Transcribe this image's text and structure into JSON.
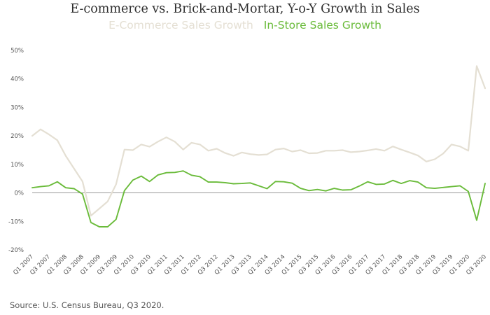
{
  "chart_data": {
    "type": "line",
    "title": "E-commerce vs. Brick-and-Mortar, Y-o-Y Growth in Sales",
    "xlabel": "",
    "ylabel": "",
    "ylim": [
      -20,
      50
    ],
    "yticks": [
      -20,
      -10,
      0,
      10,
      20,
      30,
      40,
      50
    ],
    "ytick_labels": [
      "-20%",
      "-10%",
      "0%",
      "10%",
      "20%",
      "30%",
      "40%",
      "50%"
    ],
    "legend_position": "top-center",
    "grid": false,
    "categories": [
      "Q1 2007",
      "Q2 2007",
      "Q3 2007",
      "Q4 2007",
      "Q1 2008",
      "Q2 2008",
      "Q3 2008",
      "Q4 2008",
      "Q1 2009",
      "Q2 2009",
      "Q3 2009",
      "Q4 2009",
      "Q1 2010",
      "Q2 2010",
      "Q3 2010",
      "Q4 2010",
      "Q1 2011",
      "Q2 2011",
      "Q3 2011",
      "Q4 2011",
      "Q1 2012",
      "Q2 2012",
      "Q3 2012",
      "Q4 2012",
      "Q1 2013",
      "Q2 2013",
      "Q3 2013",
      "Q4 2013",
      "Q1 2014",
      "Q2 2014",
      "Q3 2014",
      "Q4 2014",
      "Q1 2015",
      "Q2 2015",
      "Q3 2015",
      "Q4 2015",
      "Q1 2016",
      "Q2 2016",
      "Q3 2016",
      "Q4 2016",
      "Q1 2017",
      "Q2 2017",
      "Q3 2017",
      "Q4 2017",
      "Q1 2018",
      "Q2 2018",
      "Q3 2018",
      "Q4 2018",
      "Q1 2019",
      "Q2 2019",
      "Q3 2019",
      "Q4 2019",
      "Q1 2020",
      "Q2 2020",
      "Q3 2020"
    ],
    "tick_labels": [
      "Q1 2007",
      "Q3 2007",
      "Q1 2008",
      "Q3 2008",
      "Q1 2009",
      "Q3 2009",
      "Q1 2010",
      "Q3 2010",
      "Q1 2011",
      "Q3 2011",
      "Q1 2012",
      "Q3 2012",
      "Q1 2013",
      "Q3 2013",
      "Q1 2014",
      "Q3 2014",
      "Q1 2015",
      "Q3 2015",
      "Q1 2016",
      "Q3 2016",
      "Q1 2017",
      "Q3 2017",
      "Q1 2018",
      "Q3 2018",
      "Q1 2019",
      "Q3 2019",
      "Q1 2020",
      "Q3 2020"
    ],
    "series": [
      {
        "name": "E-Commerce Sales Growth",
        "color": "#e4dfd3",
        "values": [
          20,
          22.3,
          20.5,
          18.5,
          13,
          8.5,
          4,
          -8,
          -5.5,
          -3,
          3,
          15.2,
          15,
          17,
          16.2,
          18,
          19.5,
          18,
          15.2,
          17.6,
          17,
          14.8,
          15.5,
          14,
          13,
          14.2,
          13.6,
          13.3,
          13.5,
          15.2,
          15.6,
          14.5,
          15,
          13.9,
          14,
          14.8,
          14.8,
          15,
          14.3,
          14.5,
          14.9,
          15.4,
          14.8,
          16.3,
          15.2,
          14.2,
          13.1,
          11,
          11.8,
          13.8,
          17,
          16.3,
          14.8,
          44.5,
          36.7
        ]
      },
      {
        "name": "In-Store Sales Growth",
        "color": "#6abb3a",
        "values": [
          1.8,
          2.2,
          2.5,
          3.9,
          1.8,
          1.5,
          -0.4,
          -10.4,
          -11.9,
          -11.9,
          -9.3,
          0.8,
          4.5,
          5.9,
          4,
          6.3,
          7.1,
          7.2,
          7.7,
          6.2,
          5.7,
          3.8,
          3.8,
          3.6,
          3.2,
          3.3,
          3.5,
          2.5,
          1.5,
          4,
          3.9,
          3.4,
          1.6,
          0.8,
          1.2,
          0.7,
          1.6,
          1,
          1.1,
          2.4,
          3.9,
          3,
          3.1,
          4.4,
          3.3,
          4.3,
          3.8,
          1.8,
          1.6,
          1.9,
          2.2,
          2.5,
          0.5,
          -9.6,
          3.3
        ]
      }
    ],
    "source": "Source: U.S. Census Bureau, Q3 2020."
  }
}
